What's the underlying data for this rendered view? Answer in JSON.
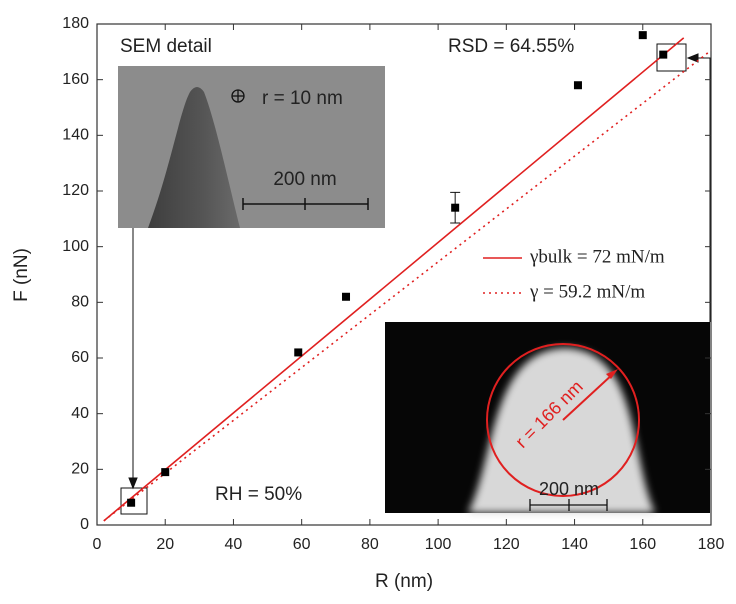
{
  "chart_data": {
    "type": "scatter",
    "xlabel": "R (nm)",
    "ylabel": "F (nN)",
    "xlim": [
      0,
      180
    ],
    "ylim": [
      0,
      180
    ],
    "xticks": [
      0,
      20,
      40,
      60,
      80,
      100,
      120,
      140,
      160,
      180
    ],
    "yticks": [
      0,
      20,
      40,
      60,
      80,
      100,
      120,
      140,
      160,
      180
    ],
    "points": {
      "color": "#000000",
      "x": [
        10,
        20,
        59,
        73,
        105,
        141,
        160,
        166
      ],
      "y": [
        8,
        19,
        62,
        82,
        114,
        158,
        176,
        169
      ],
      "yerr": [
        null,
        null,
        null,
        null,
        5.5,
        null,
        null,
        null
      ]
    },
    "series": [
      {
        "name": "γbulk = 72 mN/m",
        "color": "#e02020",
        "style": "solid",
        "x": [
          2,
          172
        ],
        "values": [
          1.5,
          175
        ]
      },
      {
        "name": "γ = 59.2 mN/m",
        "color": "#e02020",
        "style": "dotted",
        "x": [
          2,
          180
        ],
        "values": [
          1.5,
          170.5
        ]
      }
    ],
    "annotations": [
      "SEM detail",
      "RSD = 64.55%",
      "RH = 50%"
    ],
    "insets": [
      {
        "label": "r = 10 nm",
        "scale": "200 nm"
      },
      {
        "label": "r = 166 nm",
        "scale": "200 nm"
      }
    ]
  }
}
